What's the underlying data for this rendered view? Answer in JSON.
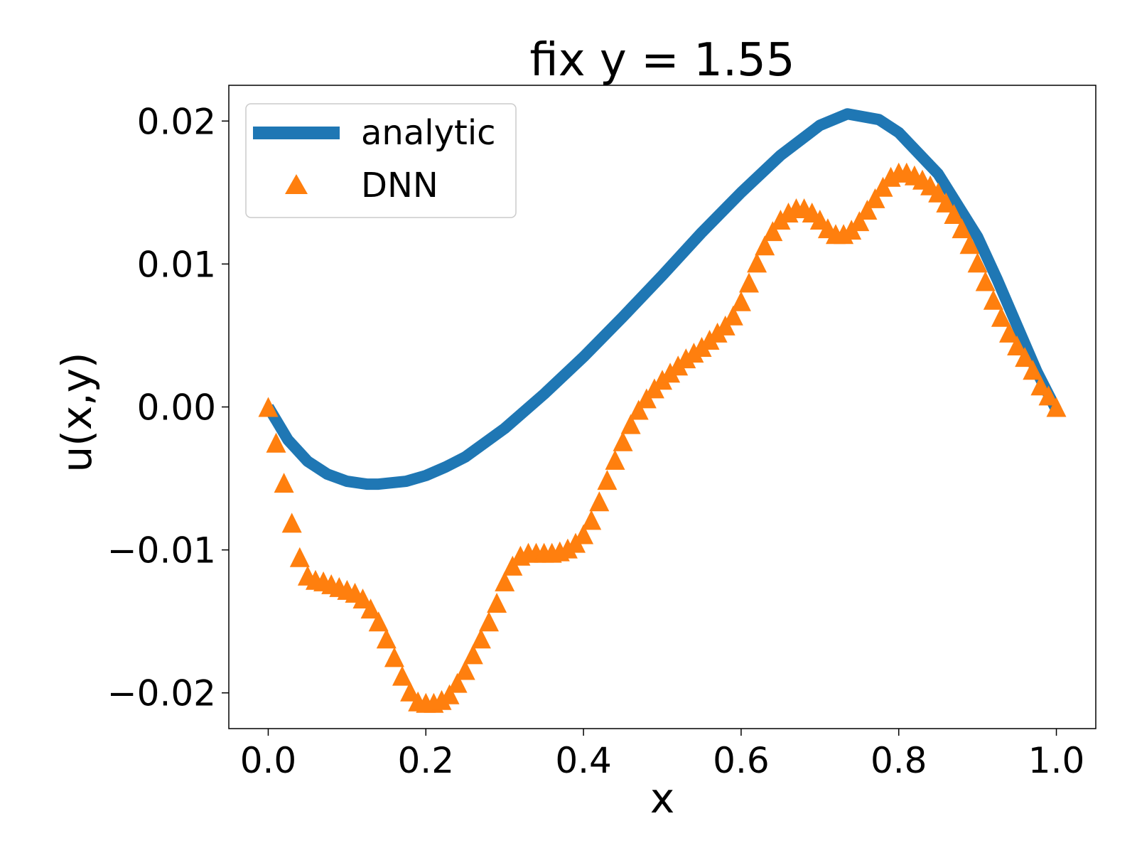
{
  "chart_data": {
    "type": "line",
    "title": "fix y = 1.55",
    "xlabel": "x",
    "ylabel": "u(x,y)",
    "xlim": [
      -0.05,
      1.05
    ],
    "ylim": [
      -0.0225,
      0.0225
    ],
    "grid": false,
    "legend_position": "top-left",
    "x_ticks": [
      0.0,
      0.2,
      0.4,
      0.6,
      0.8,
      1.0
    ],
    "x_tick_labels": [
      "0.0",
      "0.2",
      "0.4",
      "0.6",
      "0.8",
      "1.0"
    ],
    "y_ticks": [
      -0.02,
      -0.01,
      0.0,
      0.01,
      0.02
    ],
    "y_tick_labels": [
      "−0.02",
      "−0.01",
      "0.00",
      "0.01",
      "0.02"
    ],
    "series": [
      {
        "name": "analytic",
        "style": "line",
        "color": "#1f77b4",
        "x": [
          0.0,
          0.025,
          0.05,
          0.075,
          0.1,
          0.125,
          0.14,
          0.175,
          0.2,
          0.225,
          0.25,
          0.3,
          0.35,
          0.4,
          0.45,
          0.5,
          0.55,
          0.6,
          0.65,
          0.7,
          0.735,
          0.775,
          0.8,
          0.85,
          0.9,
          0.925,
          0.95,
          0.975,
          1.0
        ],
        "y": [
          0.0,
          -0.0023,
          -0.0038,
          -0.0047,
          -0.0052,
          -0.0054,
          -0.0054,
          -0.0052,
          -0.0048,
          -0.0042,
          -0.0035,
          -0.0015,
          0.0009,
          0.0035,
          0.0063,
          0.0092,
          0.0122,
          0.015,
          0.0176,
          0.0197,
          0.0205,
          0.0201,
          0.0192,
          0.0163,
          0.0119,
          0.0089,
          0.0057,
          0.0025,
          -0.0002
        ]
      },
      {
        "name": "DNN",
        "style": "markers",
        "marker": "triangle",
        "color": "#ff7f0e",
        "x": [
          0.0,
          0.01,
          0.02,
          0.03,
          0.04,
          0.05,
          0.06,
          0.07,
          0.08,
          0.09,
          0.1,
          0.11,
          0.12,
          0.13,
          0.14,
          0.15,
          0.16,
          0.17,
          0.18,
          0.19,
          0.2,
          0.21,
          0.22,
          0.23,
          0.24,
          0.25,
          0.26,
          0.27,
          0.28,
          0.29,
          0.3,
          0.31,
          0.32,
          0.33,
          0.34,
          0.35,
          0.36,
          0.37,
          0.38,
          0.39,
          0.4,
          0.41,
          0.42,
          0.43,
          0.44,
          0.45,
          0.46,
          0.47,
          0.48,
          0.49,
          0.5,
          0.51,
          0.52,
          0.53,
          0.54,
          0.55,
          0.56,
          0.57,
          0.58,
          0.59,
          0.6,
          0.61,
          0.62,
          0.63,
          0.64,
          0.65,
          0.66,
          0.67,
          0.68,
          0.69,
          0.7,
          0.71,
          0.72,
          0.73,
          0.74,
          0.75,
          0.76,
          0.77,
          0.78,
          0.79,
          0.8,
          0.81,
          0.82,
          0.83,
          0.84,
          0.85,
          0.86,
          0.87,
          0.88,
          0.89,
          0.9,
          0.91,
          0.92,
          0.93,
          0.94,
          0.95,
          0.96,
          0.97,
          0.98,
          0.99,
          1.0
        ],
        "y": [
          0.0,
          -0.0025,
          -0.0053,
          -0.0081,
          -0.0105,
          -0.0118,
          -0.0121,
          -0.0122,
          -0.0124,
          -0.0126,
          -0.0128,
          -0.013,
          -0.0134,
          -0.0141,
          -0.015,
          -0.0162,
          -0.0175,
          -0.0188,
          -0.0199,
          -0.0206,
          -0.0207,
          -0.0207,
          -0.0205,
          -0.0201,
          -0.0193,
          -0.0184,
          -0.0173,
          -0.0162,
          -0.015,
          -0.0137,
          -0.0122,
          -0.0111,
          -0.0104,
          -0.0102,
          -0.0102,
          -0.0102,
          -0.0102,
          -0.0101,
          -0.0099,
          -0.0095,
          -0.0089,
          -0.0079,
          -0.0066,
          -0.0051,
          -0.0037,
          -0.0024,
          -0.0012,
          -0.0002,
          0.0006,
          0.0013,
          0.0019,
          0.0024,
          0.0029,
          0.0034,
          0.0038,
          0.0042,
          0.0047,
          0.0052,
          0.0057,
          0.0064,
          0.0074,
          0.0087,
          0.0101,
          0.0113,
          0.0123,
          0.0131,
          0.0136,
          0.0139,
          0.0139,
          0.0136,
          0.0131,
          0.0125,
          0.0121,
          0.0121,
          0.0124,
          0.013,
          0.0138,
          0.0146,
          0.0154,
          0.0161,
          0.0164,
          0.0164,
          0.0162,
          0.0159,
          0.0155,
          0.015,
          0.0143,
          0.0135,
          0.0125,
          0.0114,
          0.0101,
          0.0088,
          0.0075,
          0.0063,
          0.0052,
          0.0043,
          0.0035,
          0.0026,
          0.0015,
          0.0008,
          0.0
        ]
      }
    ]
  }
}
